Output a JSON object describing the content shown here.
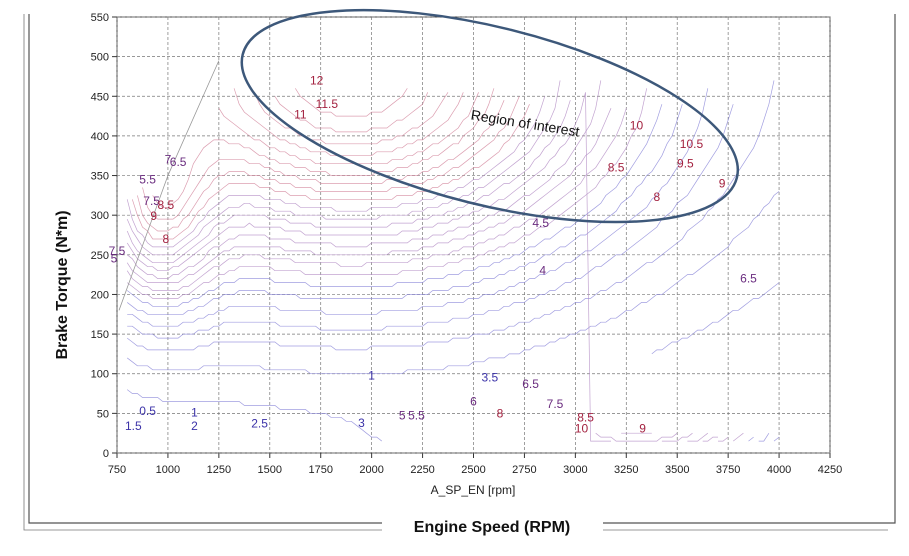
{
  "chart_data": {
    "type": "contour",
    "xlabel": "A_SP_EN [rpm]",
    "ylabel": "Brake Torque (N*m)",
    "caption": "Engine Speed (RPM)",
    "xlim": [
      750,
      4250
    ],
    "ylim": [
      0,
      550
    ],
    "x_ticks": [
      750,
      1000,
      1250,
      1500,
      1750,
      2000,
      2250,
      2500,
      2750,
      3000,
      3250,
      3500,
      3750,
      4000,
      4250
    ],
    "y_ticks": [
      0,
      50,
      100,
      150,
      200,
      250,
      300,
      350,
      400,
      450,
      500,
      550
    ],
    "grid": true,
    "annotation": {
      "text": "Region of interest",
      "x": 2750,
      "y": 410,
      "ellipse": {
        "cx": 2580,
        "cy": 425,
        "rx": 1250,
        "ry": 112
      }
    },
    "contour_labels": [
      {
        "text": "12",
        "x": 1730,
        "y": 465
      },
      {
        "text": "11.5",
        "x": 1780,
        "y": 435
      },
      {
        "text": "11",
        "x": 1650,
        "y": 422
      },
      {
        "text": "10",
        "x": 3300,
        "y": 408
      },
      {
        "text": "10.5",
        "x": 3570,
        "y": 385
      },
      {
        "text": "9.5",
        "x": 3540,
        "y": 360
      },
      {
        "text": "9",
        "x": 3720,
        "y": 335
      },
      {
        "text": "8.5",
        "x": 3200,
        "y": 355
      },
      {
        "text": "8",
        "x": 3400,
        "y": 318
      },
      {
        "text": "6.5",
        "x": 1050,
        "y": 362
      },
      {
        "text": "7",
        "x": 1000,
        "y": 365
      },
      {
        "text": "5.5",
        "x": 900,
        "y": 340
      },
      {
        "text": "7.5",
        "x": 920,
        "y": 313
      },
      {
        "text": "8.5",
        "x": 990,
        "y": 308
      },
      {
        "text": "9",
        "x": 930,
        "y": 294
      },
      {
        "text": "8",
        "x": 990,
        "y": 265
      },
      {
        "text": "7.5",
        "x": 750,
        "y": 250
      },
      {
        "text": "5",
        "x": 735,
        "y": 240
      },
      {
        "text": "4.5",
        "x": 2830,
        "y": 285
      },
      {
        "text": "4",
        "x": 2840,
        "y": 225
      },
      {
        "text": "6.5",
        "x": 3850,
        "y": 215
      },
      {
        "text": "3.5",
        "x": 2580,
        "y": 90
      },
      {
        "text": "1",
        "x": 2000,
        "y": 93
      },
      {
        "text": "6.5",
        "x": 2780,
        "y": 82
      },
      {
        "text": "6",
        "x": 2500,
        "y": 60
      },
      {
        "text": "7.5",
        "x": 2900,
        "y": 57
      },
      {
        "text": "5.5",
        "x": 2220,
        "y": 42
      },
      {
        "text": "5",
        "x": 2150,
        "y": 42
      },
      {
        "text": "8",
        "x": 2630,
        "y": 45
      },
      {
        "text": "8.5",
        "x": 3050,
        "y": 40
      },
      {
        "text": "0.5",
        "x": 900,
        "y": 48
      },
      {
        "text": "1",
        "x": 1130,
        "y": 46
      },
      {
        "text": "1.5",
        "x": 830,
        "y": 29
      },
      {
        "text": "2",
        "x": 1130,
        "y": 29
      },
      {
        "text": "2.5",
        "x": 1450,
        "y": 32
      },
      {
        "text": "3",
        "x": 1950,
        "y": 33
      },
      {
        "text": "10",
        "x": 3030,
        "y": 26
      },
      {
        "text": "9",
        "x": 3330,
        "y": 26
      }
    ]
  }
}
